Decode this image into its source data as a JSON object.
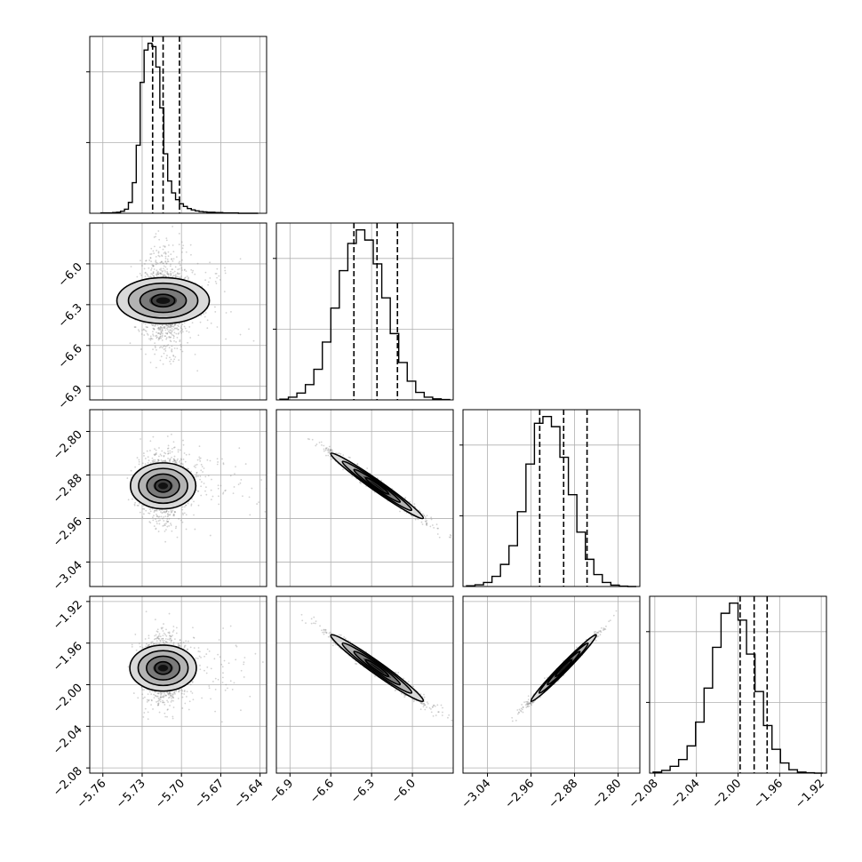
{
  "chart_data": {
    "type": "corner",
    "n_params": 4,
    "grid": true,
    "colors": {
      "line": "#000000",
      "grid": "#b0b0b0",
      "points": "#7f7f7f",
      "density_dark": "#000000"
    },
    "params": [
      {
        "range": [
          -5.77,
          -5.635
        ],
        "ticks": [
          -5.76,
          -5.73,
          -5.7,
          -5.67,
          -5.64
        ],
        "tick_labels": [
          "−5.76",
          "−5.73",
          "−5.70",
          "−5.67",
          "−5.64"
        ],
        "quantiles": [
          -5.722,
          -5.714,
          -5.7015
        ]
      },
      {
        "range": [
          -7.0,
          -5.7
        ],
        "ticks": [
          -6.9,
          -6.6,
          -6.3,
          -6.0
        ],
        "tick_labels": [
          "−6.9",
          "−6.6",
          "−6.3",
          "−6.0"
        ],
        "quantiles": [
          -6.43,
          -6.26,
          -6.11
        ]
      },
      {
        "range": [
          -3.085,
          -2.76
        ],
        "ticks": [
          -3.04,
          -2.96,
          -2.88,
          -2.8
        ],
        "tick_labels": [
          "−3.04",
          "−2.96",
          "−2.88",
          "−2.80"
        ],
        "quantiles": [
          -2.944,
          -2.9,
          -2.857
        ]
      },
      {
        "range": [
          -2.085,
          -1.915
        ],
        "ticks": [
          -2.08,
          -2.04,
          -2.0,
          -1.96,
          -1.92
        ],
        "tick_labels": [
          "−2.08",
          "−2.04",
          "−2.00",
          "−1.96",
          "−1.92"
        ],
        "quantiles": [
          -1.998,
          -1.9845,
          -1.972
        ]
      }
    ],
    "histograms": [
      {
        "param": 0,
        "edges": [
          -5.7615,
          -5.7585,
          -5.7555,
          -5.7525,
          -5.7495,
          -5.7465,
          -5.7435,
          -5.7405,
          -5.7375,
          -5.7345,
          -5.7315,
          -5.7285,
          -5.7255,
          -5.7225,
          -5.7195,
          -5.7165,
          -5.7135,
          -5.7105,
          -5.7075,
          -5.7045,
          -5.7015,
          -5.6985,
          -5.6955,
          -5.6925,
          -5.6895,
          -5.6865,
          -5.6835,
          -5.6805,
          -5.6775,
          -5.6745,
          -5.6715,
          -5.6685,
          -5.6655,
          -5.6625,
          -5.6595,
          -5.6565,
          -5.6535,
          -5.6505,
          -5.6475,
          -5.6445,
          -5.6415
        ],
        "counts": [
          1,
          1,
          1,
          2,
          3,
          6,
          12,
          32,
          90,
          200,
          385,
          480,
          500,
          490,
          430,
          310,
          175,
          95,
          60,
          40,
          28,
          20,
          14,
          10,
          7,
          5,
          4,
          3,
          3,
          2,
          2,
          1,
          1,
          1,
          1,
          0,
          0,
          0,
          0,
          0
        ]
      },
      {
        "param": 1,
        "counts": [
          2,
          8,
          20,
          45,
          90,
          170,
          270,
          380,
          460,
          500,
          470,
          400,
          300,
          195,
          110,
          55,
          22,
          8,
          3,
          1
        ]
      },
      {
        "param": 2,
        "counts": [
          2,
          5,
          12,
          30,
          65,
          120,
          220,
          360,
          480,
          500,
          470,
          380,
          270,
          160,
          80,
          35,
          12,
          4,
          1,
          0
        ]
      },
      {
        "param": 3,
        "counts": [
          3,
          8,
          20,
          40,
          80,
          150,
          250,
          370,
          470,
          500,
          450,
          350,
          240,
          140,
          70,
          30,
          10,
          3,
          1,
          0
        ]
      }
    ],
    "scatter_pairs": [
      {
        "x_param": 0,
        "y_param": 1,
        "center": [
          -5.714,
          -6.27
        ],
        "sigma": [
          0.0085,
          0.17
        ],
        "rho": 0.0
      },
      {
        "x_param": 0,
        "y_param": 2,
        "center": [
          -5.714,
          -2.9
        ],
        "sigma": [
          0.0085,
          0.03
        ],
        "rho": 0.0
      },
      {
        "x_param": 0,
        "y_param": 3,
        "center": [
          -5.714,
          -1.984
        ],
        "sigma": [
          0.0085,
          0.016
        ],
        "rho": 0.0
      },
      {
        "x_param": 1,
        "y_param": 2,
        "center": [
          -6.26,
          -2.9
        ],
        "sigma": [
          0.17,
          0.03
        ],
        "rho": -0.985
      },
      {
        "x_param": 1,
        "y_param": 3,
        "center": [
          -6.26,
          -1.984
        ],
        "sigma": [
          0.17,
          0.016
        ],
        "rho": -0.98
      },
      {
        "x_param": 2,
        "y_param": 3,
        "center": [
          -2.9,
          -1.984
        ],
        "sigma": [
          0.03,
          0.016
        ],
        "rho": 0.99
      }
    ]
  }
}
